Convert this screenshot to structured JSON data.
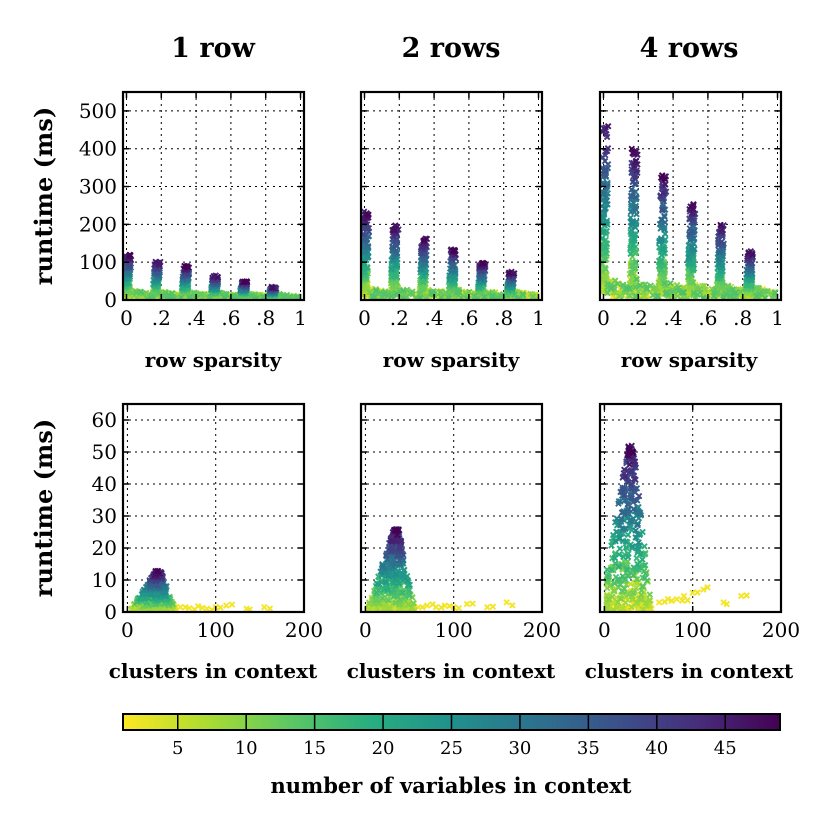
{
  "chart_data": {
    "type": "scatter",
    "figure": "runtime vs row sparsity and clusters in context, colored by number of variables in context",
    "marker": "x",
    "column_titles": [
      "1 row",
      "2 rows",
      "4 rows"
    ],
    "colormap": {
      "name": "viridis_r",
      "range": [
        1,
        49
      ],
      "ticks": [
        "5",
        "10",
        "15",
        "20",
        "25",
        "30",
        "35",
        "40",
        "45"
      ],
      "label": "number of variables in context",
      "colors": [
        "#440154",
        "#472d7b",
        "#3b528b",
        "#2c728e",
        "#21918c",
        "#28ae80",
        "#5ec962",
        "#addc30",
        "#fde725"
      ]
    },
    "rows": [
      {
        "xlabel": "row sparsity",
        "ylabel": "runtime (ms)",
        "xlim": [
          -0.02,
          1.02
        ],
        "ylim": [
          0,
          550
        ],
        "xticks": [
          0,
          0.2,
          0.4,
          0.6,
          0.8,
          1
        ],
        "xtick_labels": [
          "0",
          ".2",
          ".4",
          ".6",
          ".8",
          "1"
        ],
        "yticks": [
          0,
          100,
          200,
          300,
          400,
          500
        ],
        "ytick_labels": [
          "0",
          "100",
          "200",
          "300",
          "400",
          "500"
        ],
        "panels": [
          {
            "title": "1 row",
            "sparsity": [
              0,
              0.167,
              0.333,
              0.5,
              0.667,
              0.833
            ],
            "peak_runtime": [
              120,
              105,
              90,
              65,
              50,
              35
            ],
            "floor_runtime": [
              10,
              10,
              8,
              6,
              5,
              5
            ],
            "tail_runtime": [
              25,
              22,
              20,
              18,
              16,
              14
            ]
          },
          {
            "title": "2 rows",
            "sparsity": [
              0,
              0.167,
              0.333,
              0.5,
              0.667,
              0.833
            ],
            "peak_runtime": [
              235,
              200,
              165,
              135,
              100,
              75
            ],
            "floor_runtime": [
              15,
              15,
              12,
              10,
              8,
              8
            ],
            "tail_runtime": [
              35,
              32,
              30,
              28,
              25,
              22
            ]
          },
          {
            "title": "4 rows",
            "sparsity": [
              0,
              0.167,
              0.333,
              0.5,
              0.667,
              0.833
            ],
            "peak_runtime": [
              470,
              400,
              330,
              260,
              200,
              130
            ],
            "floor_runtime": [
              20,
              20,
              18,
              15,
              12,
              10
            ],
            "tail_runtime": [
              60,
              55,
              50,
              45,
              40,
              35
            ]
          }
        ]
      },
      {
        "xlabel": "clusters in context",
        "ylabel": "runtime (ms)",
        "xlim": [
          -5,
          200
        ],
        "ylim": [
          0,
          65
        ],
        "xticks": [
          0,
          100,
          200
        ],
        "xtick_labels": [
          "0",
          "100",
          "200"
        ],
        "yticks": [
          0,
          10,
          20,
          30,
          40,
          50,
          60
        ],
        "ytick_labels": [
          "0",
          "10",
          "20",
          "30",
          "40",
          "50",
          "60"
        ],
        "panels": [
          {
            "title": "1 row",
            "peak_clusters": 35,
            "peak_runtime": 13,
            "cluster_range": [
              3,
              55
            ],
            "yellow_tail": {
              "clusters": [
                60,
                70,
                80,
                90,
                100,
                112,
                135,
                155
              ],
              "runtime": [
                1.5,
                1.2,
                1.8,
                1.0,
                1.5,
                2.0,
                1.0,
                1.5
              ]
            }
          },
          {
            "title": "2 rows",
            "peak_clusters": 35,
            "peak_runtime": 26,
            "cluster_range": [
              3,
              58
            ],
            "yellow_tail": {
              "clusters": [
                60,
                70,
                80,
                90,
                100,
                115,
                138,
                160
              ],
              "runtime": [
                1.5,
                2.0,
                1.5,
                2.0,
                1.5,
                2.5,
                1.5,
                3.0
              ]
            }
          },
          {
            "title": "4 rows",
            "peak_clusters": 30,
            "peak_runtime": 52,
            "cluster_range": [
              3,
              62
            ],
            "yellow_tail": {
              "clusters": [
                62,
                72,
                82,
                90,
                100,
                112,
                135,
                155
              ],
              "runtime": [
                3,
                4,
                4,
                5,
                6,
                7,
                3,
                5
              ]
            }
          }
        ]
      }
    ]
  }
}
